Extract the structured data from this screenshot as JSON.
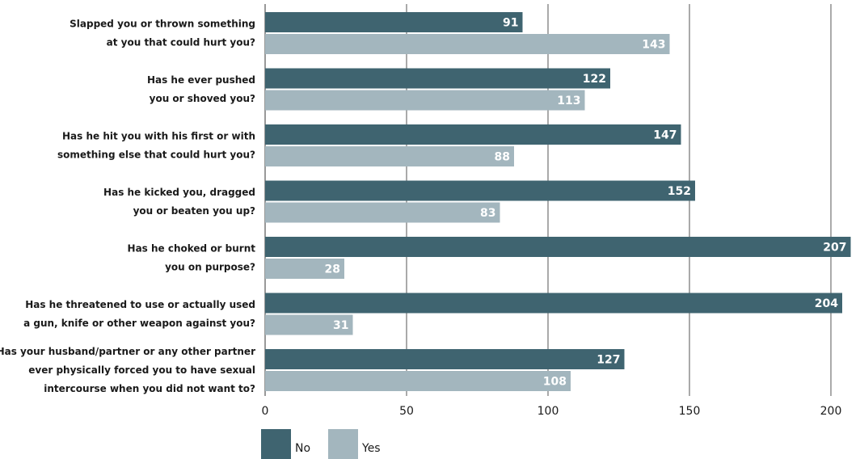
{
  "chart_data": {
    "type": "bar",
    "orientation": "horizontal",
    "categories": [
      [
        "Slapped you or thrown something",
        "at you that could hurt you?"
      ],
      [
        "Has he ever pushed",
        "you or shoved you?"
      ],
      [
        "Has he hit you with his first or with",
        "something else that could hurt you?"
      ],
      [
        "Has he kicked you, dragged",
        "you or beaten you up?"
      ],
      [
        "Has he choked or burnt",
        "you on purpose?"
      ],
      [
        "Has he threatened to use or actually used",
        "a gun, knife or other weapon against you?"
      ],
      [
        "Has your husband/partner or any other partner",
        "ever physically forced you to have sexual",
        "intercourse when you did not want to?"
      ]
    ],
    "series": [
      {
        "name": "No",
        "color": "#3f6470",
        "values": [
          91,
          122,
          147,
          152,
          207,
          204,
          127
        ]
      },
      {
        "name": "Yes",
        "color": "#a3b6be",
        "values": [
          143,
          113,
          88,
          83,
          28,
          31,
          108
        ]
      }
    ],
    "xlim": [
      0,
      207
    ],
    "xticks": [
      0,
      50,
      100,
      150,
      200
    ],
    "grid": "vertical",
    "legend": "bottom",
    "data_labels": true
  }
}
